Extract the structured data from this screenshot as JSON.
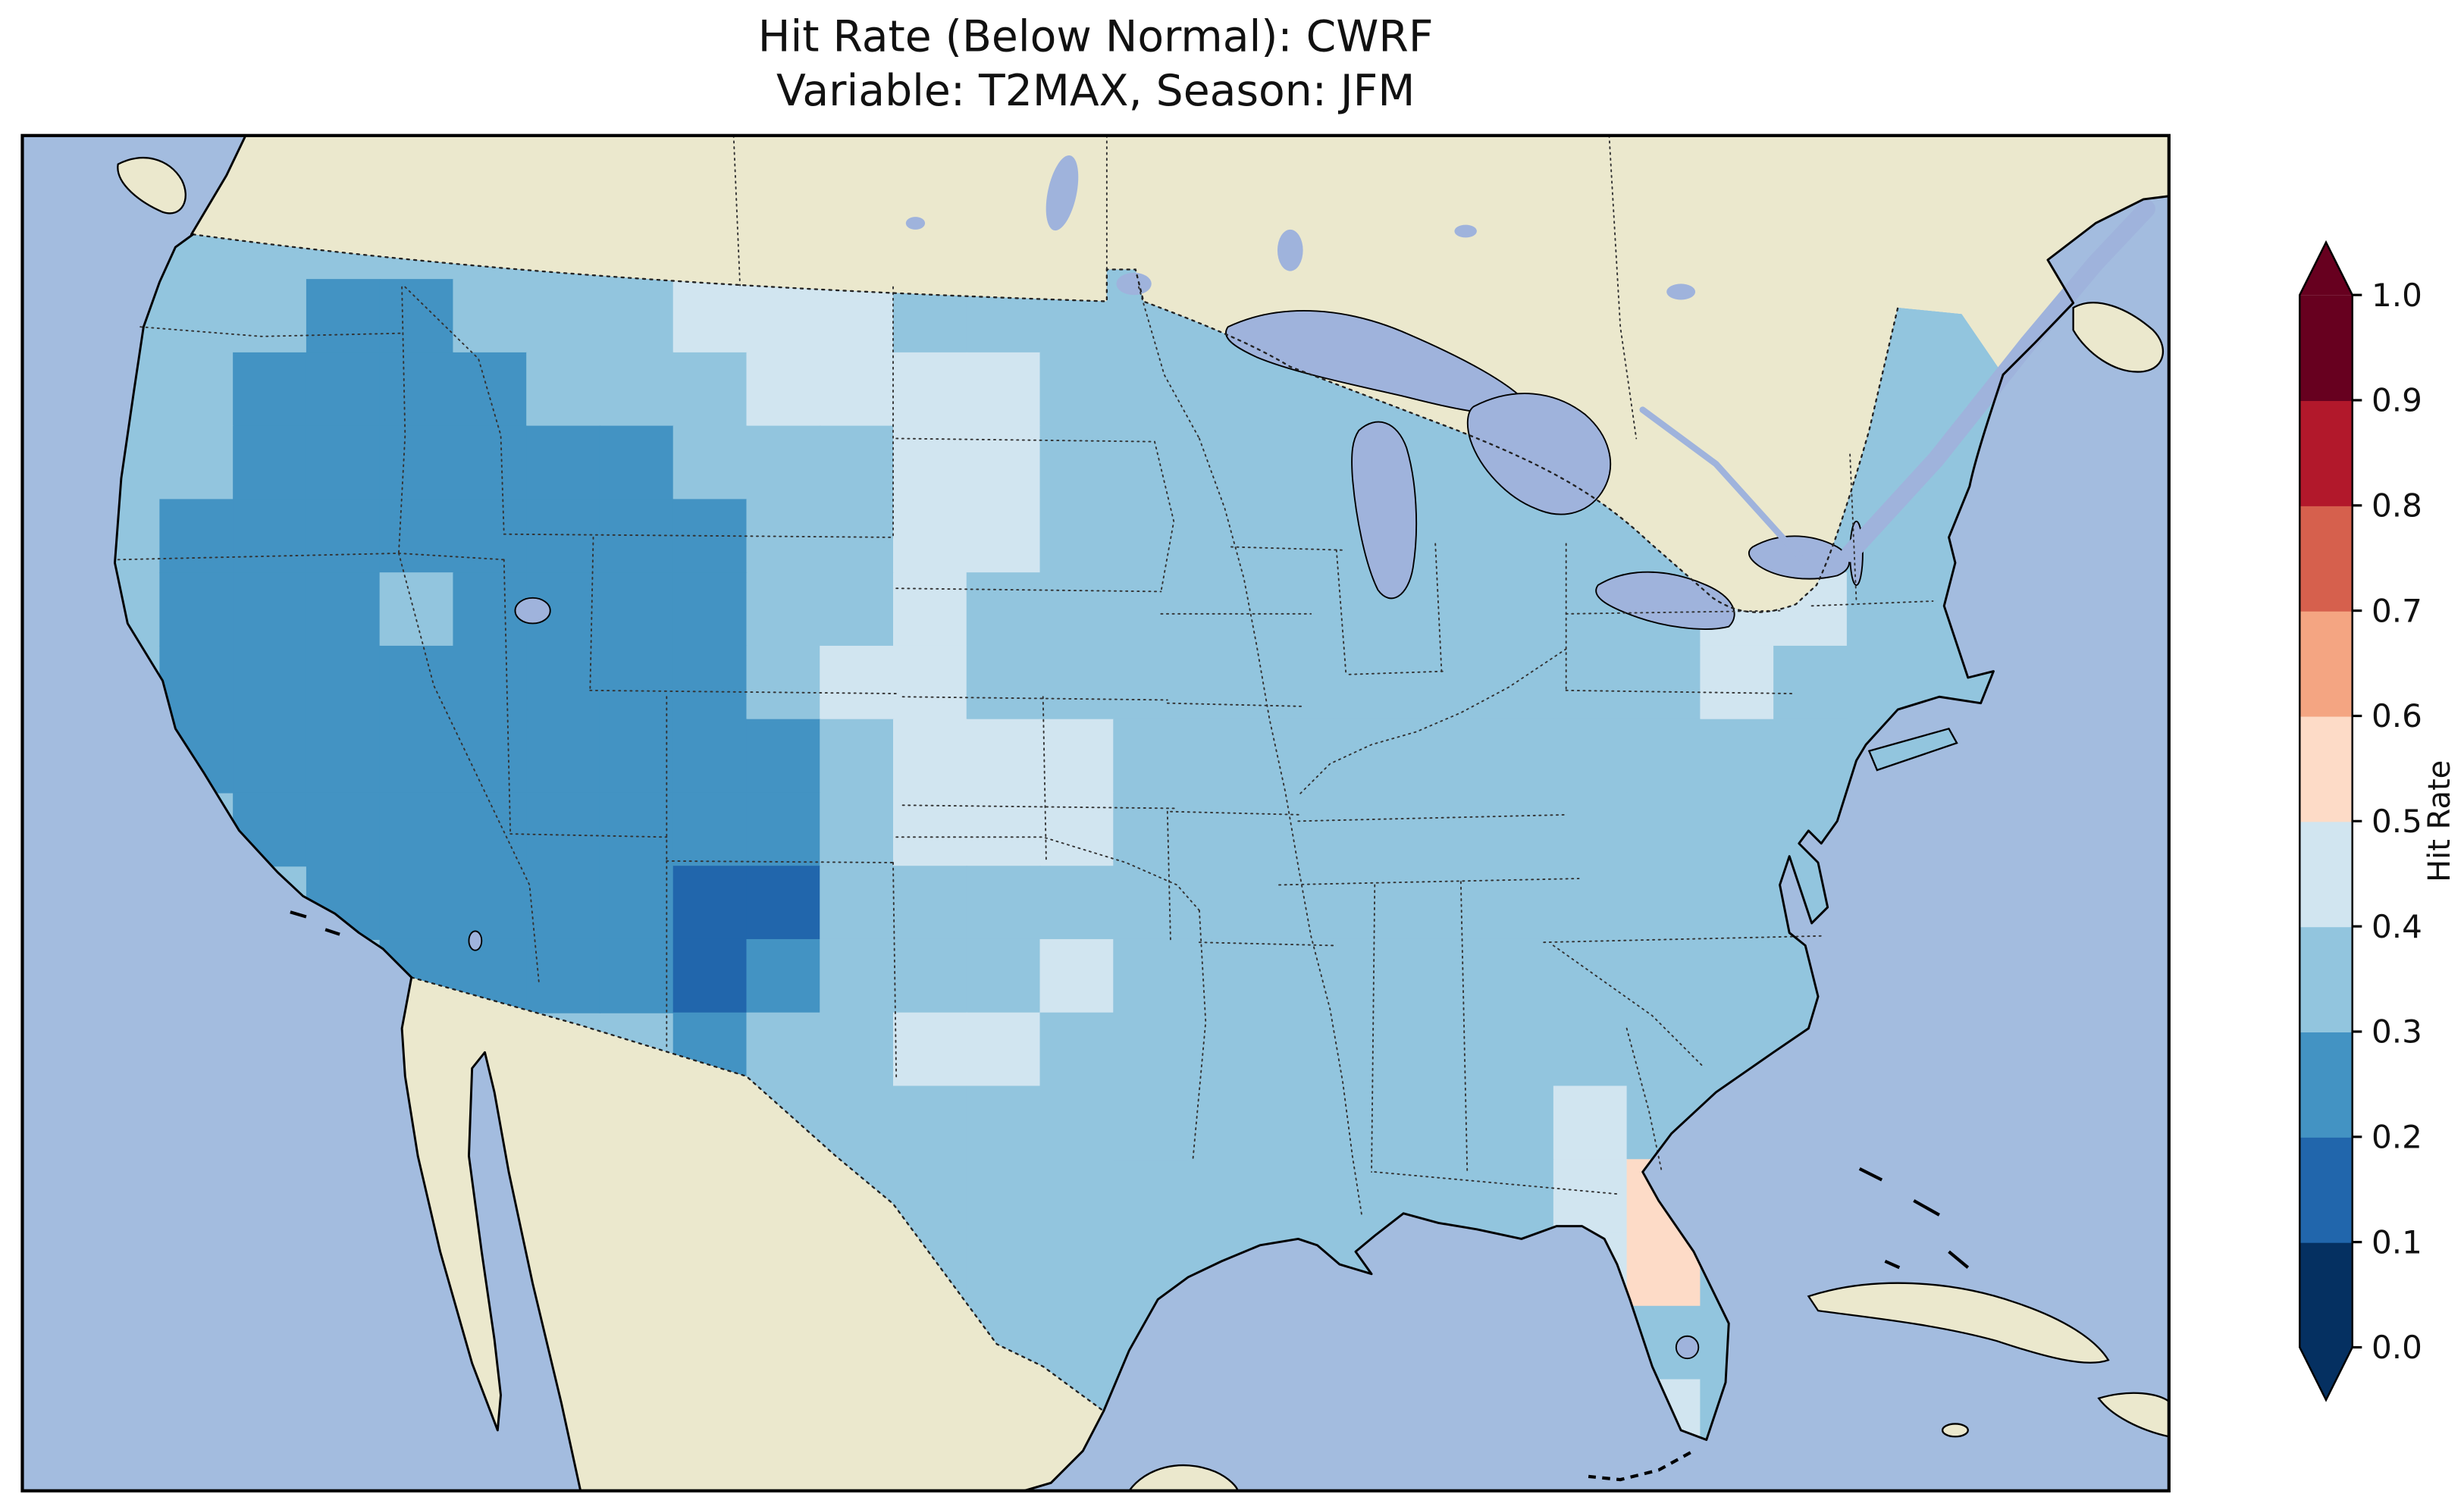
{
  "title": {
    "line1": "Hit Rate (Below Normal): CWRF",
    "line2": "Variable: T2MAX, Season: JFM"
  },
  "colorbar": {
    "label": "Hit Rate",
    "orientation": "vertical",
    "extend": "both",
    "tick_labels": [
      "1.0",
      "0.9",
      "0.8",
      "0.7",
      "0.6",
      "0.5",
      "0.4",
      "0.3",
      "0.2",
      "0.1",
      "0.0"
    ]
  },
  "map": {
    "region": "Contiguous United States with southern Canada, northern Mexico, Gulf of Mexico and Caribbean",
    "ocean_color": "#a3bcdf",
    "land_color": "#ebe8cd",
    "lake_color": "#9fb3dc",
    "us_base_color": "#92c5de"
  },
  "chart_data": {
    "type": "heatmap",
    "title": "Hit Rate (Below Normal): CWRF",
    "subtitle": "Variable: T2MAX, Season: JFM",
    "metric": "Hit Rate (Below Normal)",
    "model": "CWRF",
    "variable": "T2MAX",
    "season": "JFM",
    "colorbar_label": "Hit Rate",
    "value_range": [
      0.0,
      1.0
    ],
    "bin_width": 0.1,
    "colors_low_to_high": [
      "#053061",
      "#2166ac",
      "#4393c3",
      "#92c5de",
      "#d1e5f0",
      "#fddbc7",
      "#f4a582",
      "#d6604d",
      "#b2182b",
      "#67001f"
    ],
    "under_arrow_color": "#053061",
    "over_arrow_color": "#67001f",
    "grid": {
      "note": "values are hit-rate bin midpoints x100 over CONUS; null = no data / outside region",
      "cols": 27,
      "rows": 16,
      "values": [
        [
          null,
          35,
          35,
          25,
          25,
          35,
          35,
          35,
          45,
          45,
          45,
          35,
          35,
          35,
          35,
          35,
          35,
          null,
          null,
          null,
          null,
          null,
          null,
          null,
          35,
          35,
          null
        ],
        [
          null,
          35,
          25,
          25,
          25,
          25,
          35,
          35,
          35,
          45,
          45,
          45,
          45,
          35,
          35,
          35,
          35,
          35,
          null,
          null,
          null,
          null,
          null,
          null,
          35,
          35,
          null
        ],
        [
          null,
          35,
          25,
          25,
          25,
          25,
          25,
          25,
          35,
          35,
          35,
          45,
          45,
          35,
          35,
          35,
          35,
          35,
          null,
          null,
          null,
          null,
          35,
          35,
          35,
          35,
          null
        ],
        [
          null,
          25,
          25,
          25,
          25,
          25,
          25,
          25,
          25,
          35,
          35,
          45,
          45,
          35,
          35,
          35,
          35,
          35,
          null,
          null,
          null,
          35,
          35,
          35,
          35,
          35,
          null
        ],
        [
          null,
          25,
          25,
          25,
          35,
          25,
          25,
          25,
          25,
          35,
          35,
          45,
          35,
          35,
          35,
          35,
          35,
          35,
          35,
          35,
          35,
          35,
          45,
          45,
          35,
          null,
          null
        ],
        [
          null,
          25,
          25,
          25,
          25,
          25,
          25,
          25,
          25,
          35,
          45,
          45,
          35,
          35,
          35,
          35,
          35,
          35,
          35,
          35,
          35,
          35,
          45,
          35,
          null,
          null,
          null
        ],
        [
          null,
          25,
          25,
          25,
          25,
          25,
          25,
          25,
          25,
          25,
          35,
          45,
          45,
          45,
          35,
          35,
          35,
          35,
          35,
          35,
          35,
          35,
          35,
          35,
          null,
          null,
          null
        ],
        [
          null,
          null,
          25,
          25,
          25,
          25,
          25,
          25,
          25,
          25,
          35,
          45,
          45,
          45,
          35,
          35,
          35,
          35,
          35,
          35,
          35,
          35,
          null,
          null,
          null,
          null,
          null
        ],
        [
          null,
          null,
          null,
          25,
          25,
          25,
          25,
          25,
          15,
          15,
          35,
          35,
          35,
          35,
          35,
          35,
          35,
          35,
          35,
          35,
          null,
          null,
          null,
          null,
          null,
          null,
          null
        ],
        [
          null,
          null,
          null,
          null,
          25,
          25,
          25,
          25,
          15,
          25,
          35,
          35,
          35,
          45,
          35,
          35,
          35,
          35,
          35,
          35,
          null,
          null,
          null,
          null,
          null,
          null,
          null
        ],
        [
          null,
          null,
          null,
          null,
          null,
          null,
          null,
          null,
          25,
          35,
          35,
          45,
          45,
          35,
          35,
          35,
          35,
          35,
          35,
          35,
          null,
          null,
          null,
          null,
          null,
          null,
          null
        ],
        [
          null,
          null,
          null,
          null,
          null,
          null,
          null,
          null,
          null,
          35,
          35,
          35,
          35,
          35,
          35,
          35,
          35,
          35,
          35,
          35,
          45,
          35,
          null,
          null,
          null,
          null,
          null
        ],
        [
          null,
          null,
          null,
          null,
          null,
          null,
          null,
          null,
          null,
          null,
          35,
          35,
          35,
          35,
          null,
          35,
          35,
          35,
          35,
          35,
          45,
          55,
          35,
          null,
          null,
          null,
          null
        ],
        [
          null,
          null,
          null,
          null,
          null,
          null,
          null,
          null,
          null,
          null,
          null,
          35,
          35,
          35,
          null,
          null,
          null,
          null,
          null,
          null,
          45,
          55,
          35,
          null,
          null,
          null,
          null
        ],
        [
          null,
          null,
          null,
          null,
          null,
          null,
          null,
          null,
          null,
          null,
          null,
          null,
          35,
          35,
          null,
          null,
          null,
          null,
          null,
          null,
          null,
          35,
          35,
          null,
          null,
          null,
          null
        ],
        [
          null,
          null,
          null,
          null,
          null,
          null,
          null,
          null,
          null,
          null,
          null,
          null,
          null,
          null,
          null,
          null,
          null,
          null,
          null,
          null,
          null,
          45,
          35,
          null,
          null,
          null,
          null
        ]
      ]
    },
    "region_summary": [
      {
        "region": "West (CA, NV, AZ, UT, western CO)",
        "hit_rate": "0.2-0.3"
      },
      {
        "region": "Central New Mexico",
        "hit_rate": "0.1-0.2"
      },
      {
        "region": "Eastern WA / N Idaho / W Montana",
        "hit_rate": "0.2-0.3"
      },
      {
        "region": "Northern and central Plains patches",
        "hit_rate": "0.4-0.5"
      },
      {
        "region": "Midwest, South and East",
        "hit_rate": "0.3-0.4"
      },
      {
        "region": "NJ / Mid-Atlantic pocket",
        "hit_rate": "0.4-0.5"
      },
      {
        "region": "Central Florida",
        "hit_rate": "0.5-0.6"
      }
    ]
  }
}
